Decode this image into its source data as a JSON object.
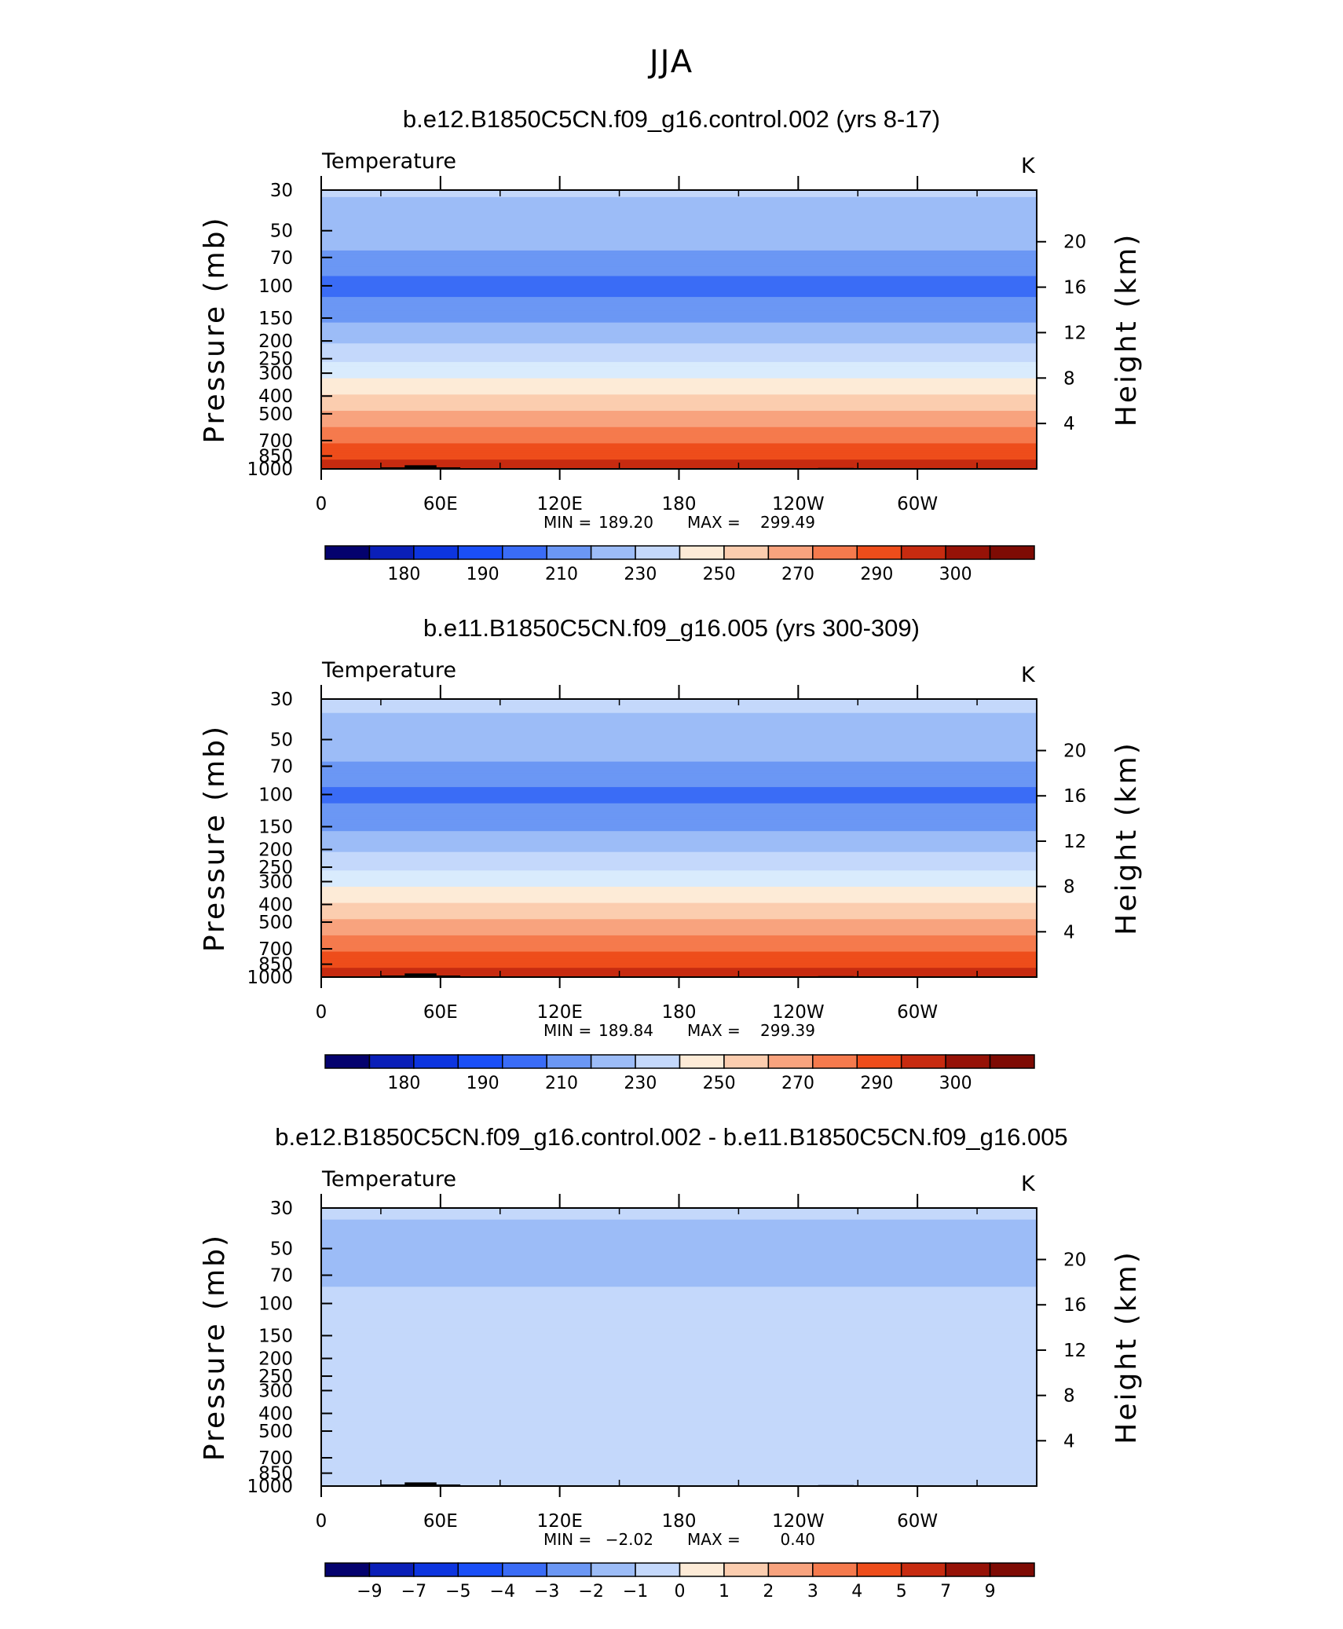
{
  "super_title": "JJA",
  "colors": {
    "ocean": [
      "#04026e",
      "#0a1fb8",
      "#0d35df",
      "#1a4ff7",
      "#3a6cf6",
      "#6b97f4",
      "#9cbcf7",
      "#c4d8fb",
      "#d9ebfd",
      "#fdebd7",
      "#fbcdaf",
      "#f8a37e",
      "#f57a4d",
      "#ee4d1b",
      "#c72b10",
      "#961207",
      "#7e0b04"
    ],
    "topography": "#000000"
  },
  "chart_data": [
    {
      "type": "heatmap",
      "title": "b.e12.B1850C5CN.f09_g16.control.002 (yrs 8-17)",
      "variable_label": "Temperature",
      "units_label": "K",
      "ylabel": "Pressure (mb)",
      "ylabel_right": "Height (km)",
      "x_ticks": [
        "0",
        "60E",
        "120E",
        "180",
        "120W",
        "60W"
      ],
      "x_tick_values": [
        0,
        60,
        120,
        180,
        240,
        300
      ],
      "xlim": [
        0,
        360
      ],
      "y_ticks": [
        "30",
        "50",
        "70",
        "100",
        "150",
        "200",
        "250",
        "300",
        "400",
        "500",
        "700",
        "850",
        "1000"
      ],
      "y_tick_values": [
        30,
        50,
        70,
        100,
        150,
        200,
        250,
        300,
        400,
        500,
        700,
        850,
        1000
      ],
      "ylim": [
        1000,
        30
      ],
      "y_scale": "log",
      "right_ticks": [
        "20",
        "16",
        "12",
        "8",
        "4"
      ],
      "right_tick_values": [
        20,
        16,
        12,
        8,
        4
      ],
      "min_label": "MIN =",
      "min_value": "189.20",
      "max_label": "MAX =",
      "max_value": "299.49",
      "colorbar_labels": [
        "180",
        "190",
        "210",
        "230",
        "250",
        "270",
        "290",
        "300"
      ],
      "levels": [
        175,
        180,
        185,
        190,
        200,
        210,
        220,
        230,
        240,
        250,
        260,
        270,
        280,
        290,
        295,
        300
      ],
      "approx_profile_p": [
        30,
        50,
        70,
        100,
        150,
        200,
        250,
        300,
        400,
        500,
        700,
        850,
        1000
      ],
      "approx_profile_t": [
        221,
        215,
        208,
        196,
        208,
        218,
        228,
        236,
        251,
        262,
        279,
        288,
        295
      ]
    },
    {
      "type": "heatmap",
      "title": "b.e11.B1850C5CN.f09_g16.005 (yrs 300-309)",
      "variable_label": "Temperature",
      "units_label": "K",
      "ylabel": "Pressure (mb)",
      "ylabel_right": "Height (km)",
      "x_ticks": [
        "0",
        "60E",
        "120E",
        "180",
        "120W",
        "60W"
      ],
      "x_tick_values": [
        0,
        60,
        120,
        180,
        240,
        300
      ],
      "xlim": [
        0,
        360
      ],
      "y_ticks": [
        "30",
        "50",
        "70",
        "100",
        "150",
        "200",
        "250",
        "300",
        "400",
        "500",
        "700",
        "850",
        "1000"
      ],
      "y_tick_values": [
        30,
        50,
        70,
        100,
        150,
        200,
        250,
        300,
        400,
        500,
        700,
        850,
        1000
      ],
      "ylim": [
        1000,
        30
      ],
      "y_scale": "log",
      "right_ticks": [
        "20",
        "16",
        "12",
        "8",
        "4"
      ],
      "right_tick_values": [
        20,
        16,
        12,
        8,
        4
      ],
      "min_label": "MIN =",
      "min_value": "189.84",
      "max_label": "MAX =",
      "max_value": "299.39",
      "colorbar_labels": [
        "180",
        "190",
        "210",
        "230",
        "250",
        "270",
        "290",
        "300"
      ],
      "levels": [
        175,
        180,
        185,
        190,
        200,
        210,
        220,
        230,
        240,
        250,
        260,
        270,
        280,
        290,
        295,
        300
      ],
      "approx_profile_p": [
        30,
        50,
        70,
        100,
        150,
        200,
        250,
        300,
        400,
        500,
        700,
        850,
        1000
      ],
      "approx_profile_t": [
        222,
        216,
        209,
        197,
        208,
        218,
        228,
        236,
        251,
        262,
        279,
        288,
        295
      ]
    },
    {
      "type": "heatmap",
      "title": "b.e12.B1850C5CN.f09_g16.control.002 - b.e11.B1850C5CN.f09_g16.005",
      "variable_label": "Temperature",
      "units_label": "K",
      "ylabel": "Pressure (mb)",
      "ylabel_right": "Height (km)",
      "x_ticks": [
        "0",
        "60E",
        "120E",
        "180",
        "120W",
        "60W"
      ],
      "x_tick_values": [
        0,
        60,
        120,
        180,
        240,
        300
      ],
      "xlim": [
        0,
        360
      ],
      "y_ticks": [
        "30",
        "50",
        "70",
        "100",
        "150",
        "200",
        "250",
        "300",
        "400",
        "500",
        "700",
        "850",
        "1000"
      ],
      "y_tick_values": [
        30,
        50,
        70,
        100,
        150,
        200,
        250,
        300,
        400,
        500,
        700,
        850,
        1000
      ],
      "ylim": [
        1000,
        30
      ],
      "y_scale": "log",
      "right_ticks": [
        "20",
        "16",
        "12",
        "8",
        "4"
      ],
      "right_tick_values": [
        20,
        16,
        12,
        8,
        4
      ],
      "min_label": "MIN =",
      "min_value": "−2.02",
      "max_label": "MAX =",
      "max_value": "0.40",
      "colorbar_labels": [
        "−9",
        "−7",
        "−5",
        "−4",
        "−3",
        "−2",
        "−1",
        "0",
        "1",
        "2",
        "3",
        "4",
        "5",
        "7",
        "9"
      ],
      "levels": [
        -9,
        -7,
        -5,
        -4,
        -3,
        -2,
        -1,
        0,
        1,
        2,
        3,
        4,
        5,
        7,
        9
      ],
      "approx_profile_p": [
        30,
        40,
        50,
        70,
        95,
        150,
        300,
        1000
      ],
      "approx_profile_t": [
        -0.5,
        -1.5,
        -1.5,
        -1.5,
        -0.5,
        -0.5,
        -0.3,
        -0.3
      ]
    }
  ]
}
